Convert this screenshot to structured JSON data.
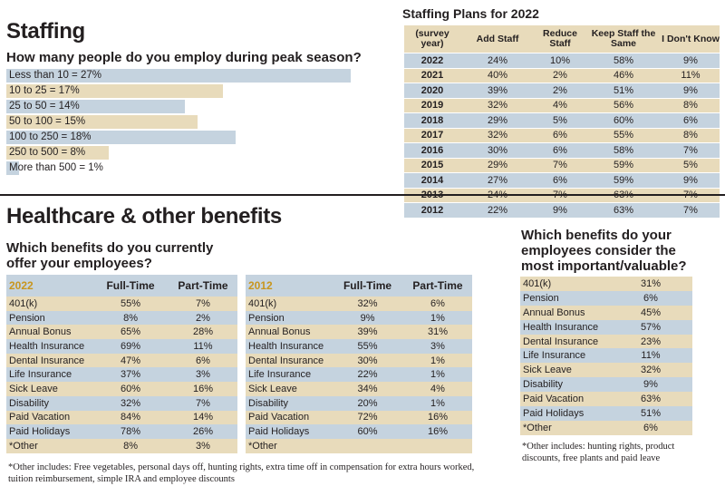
{
  "staffing": {
    "title": "Staffing",
    "question": "How many people do you employ during peak season?",
    "bars": [
      {
        "label": "Less than 10 = 27%",
        "pct": 27,
        "color": "b"
      },
      {
        "label": "10 to 25 = 17%",
        "pct": 17,
        "color": "t"
      },
      {
        "label": "25 to 50 = 14%",
        "pct": 14,
        "color": "b"
      },
      {
        "label": "50 to 100 = 15%",
        "pct": 15,
        "color": "t"
      },
      {
        "label": "100 to 250 = 18%",
        "pct": 18,
        "color": "b"
      },
      {
        "label": "250 to 500 = 8%",
        "pct": 8,
        "color": "t"
      },
      {
        "label": "More than 500 = 1%",
        "pct": 1,
        "color": "b"
      }
    ]
  },
  "plans": {
    "title": "Staffing Plans for 2022",
    "headers": [
      "(survey year)",
      "Add Staff",
      "Reduce Staff",
      "Keep Staff the Same",
      "I Don't Know"
    ],
    "rows": [
      [
        "2022",
        "24%",
        "10%",
        "58%",
        "9%"
      ],
      [
        "2021",
        "40%",
        "2%",
        "46%",
        "11%"
      ],
      [
        "2020",
        "39%",
        "2%",
        "51%",
        "9%"
      ],
      [
        "2019",
        "32%",
        "4%",
        "56%",
        "8%"
      ],
      [
        "2018",
        "29%",
        "5%",
        "60%",
        "6%"
      ],
      [
        "2017",
        "32%",
        "6%",
        "55%",
        "8%"
      ],
      [
        "2016",
        "30%",
        "6%",
        "58%",
        "7%"
      ],
      [
        "2015",
        "29%",
        "7%",
        "59%",
        "5%"
      ],
      [
        "2014",
        "27%",
        "6%",
        "59%",
        "9%"
      ],
      [
        "2013",
        "24%",
        "7%",
        "63%",
        "7%"
      ],
      [
        "2012",
        "22%",
        "9%",
        "63%",
        "7%"
      ]
    ]
  },
  "benefits": {
    "title": "Healthcare & other benefits",
    "question": "Which benefits do you currently offer your employees?",
    "col_full": "Full-Time",
    "col_part": "Part-Time",
    "table2022": {
      "year": "2022",
      "rows": [
        [
          "401(k)",
          "55%",
          "7%"
        ],
        [
          "Pension",
          "8%",
          "2%"
        ],
        [
          "Annual Bonus",
          "65%",
          "28%"
        ],
        [
          "Health Insurance",
          "69%",
          "11%"
        ],
        [
          "Dental Insurance",
          "47%",
          "6%"
        ],
        [
          "Life Insurance",
          "37%",
          "3%"
        ],
        [
          "Sick Leave",
          "60%",
          "16%"
        ],
        [
          "Disability",
          "32%",
          "7%"
        ],
        [
          "Paid Vacation",
          "84%",
          "14%"
        ],
        [
          "Paid Holidays",
          "78%",
          "26%"
        ],
        [
          "*Other",
          "8%",
          "3%"
        ]
      ]
    },
    "table2012": {
      "year": "2012",
      "rows": [
        [
          "401(k)",
          "32%",
          "6%"
        ],
        [
          "Pension",
          "9%",
          "1%"
        ],
        [
          "Annual Bonus",
          "39%",
          "31%"
        ],
        [
          "Health Insurance",
          "55%",
          "3%"
        ],
        [
          "Dental Insurance",
          "30%",
          "1%"
        ],
        [
          "Life Insurance",
          "22%",
          "1%"
        ],
        [
          "Sick Leave",
          "34%",
          "4%"
        ],
        [
          "Disability",
          "20%",
          "1%"
        ],
        [
          "Paid Vacation",
          "72%",
          "16%"
        ],
        [
          "Paid Holidays",
          "60%",
          "16%"
        ],
        [
          "*Other",
          "",
          ""
        ]
      ]
    },
    "footnote": "*Other includes: Free vegetables, personal days off, hunting rights, extra time off in compensation for extra hours worked, tuition reimbursement, simple IRA and employee discounts"
  },
  "important": {
    "question": "Which benefits do your employees consider the most important/valuable?",
    "rows": [
      [
        "401(k)",
        "31%"
      ],
      [
        "Pension",
        "6%"
      ],
      [
        "Annual Bonus",
        "45%"
      ],
      [
        "Health Insurance",
        "57%"
      ],
      [
        "Dental Insurance",
        "23%"
      ],
      [
        "Life Insurance",
        "11%"
      ],
      [
        "Sick Leave",
        "32%"
      ],
      [
        "Disability",
        "9%"
      ],
      [
        "Paid Vacation",
        "63%"
      ],
      [
        "Paid Holidays",
        "51%"
      ],
      [
        "*Other",
        "6%"
      ]
    ],
    "footnote": "*Other includes: hunting rights, product discounts, free plants and paid leave"
  }
}
